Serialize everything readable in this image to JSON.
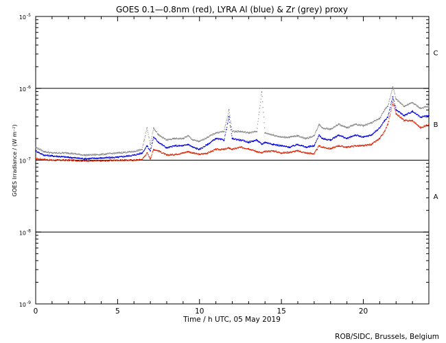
{
  "chart_data": {
    "type": "scatter",
    "title": "GOES 0.1—0.8nm (red), LYRA Al (blue) & Zr (grey) proxy",
    "xlabel": "Time / h UTC, 05 May 2019",
    "ylabel": "GOES Irradiance / (W m⁻²)",
    "credit": "ROB/SIDC, Brussels, Belgium",
    "xlim": [
      0,
      24
    ],
    "ylim_log10": [
      -9,
      -5
    ],
    "y_scale": "log",
    "x_ticks": [
      {
        "value": 0,
        "label": "0"
      },
      {
        "value": 5,
        "label": "5"
      },
      {
        "value": 10,
        "label": "10"
      },
      {
        "value": 15,
        "label": "15"
      },
      {
        "value": 20,
        "label": "20"
      }
    ],
    "y_ticks": [
      {
        "exp": -5,
        "label": "10",
        "sup": "-5"
      },
      {
        "exp": -6,
        "label": "10",
        "sup": "-6"
      },
      {
        "exp": -7,
        "label": "10",
        "sup": "-7"
      },
      {
        "exp": -8,
        "label": "10",
        "sup": "-8"
      },
      {
        "exp": -9,
        "label": "10",
        "sup": "-9"
      }
    ],
    "flare_class_lines": [
      -6,
      -7,
      -8
    ],
    "flare_classes": [
      {
        "label": "C",
        "exp": -5.5
      },
      {
        "label": "B",
        "exp": -6.5
      },
      {
        "label": "A",
        "exp": -7.5
      }
    ],
    "series": [
      {
        "name": "GOES 0.1—0.8nm",
        "color": "#dd2200",
        "x": [
          0,
          0.5,
          1,
          2,
          3,
          4,
          5,
          6,
          6.5,
          6.8,
          7.0,
          7.2,
          7.5,
          8,
          8.5,
          9,
          9.3,
          9.6,
          10,
          10.5,
          11,
          11.5,
          11.8,
          12,
          12.5,
          13,
          13.5,
          13.8,
          14,
          14.5,
          15,
          15.5,
          16,
          16.5,
          17,
          17.3,
          17.5,
          18,
          18.5,
          19,
          19.5,
          20,
          20.5,
          21,
          21.3,
          21.5,
          21.8,
          22,
          22.5,
          23,
          23.5,
          24
        ],
        "log_y": [
          -6.98,
          -6.99,
          -7.0,
          -7.0,
          -7.01,
          -7.01,
          -7.0,
          -7.0,
          -6.99,
          -6.9,
          -6.98,
          -6.85,
          -6.87,
          -6.93,
          -6.92,
          -6.9,
          -6.88,
          -6.9,
          -6.92,
          -6.9,
          -6.85,
          -6.85,
          -6.83,
          -6.85,
          -6.82,
          -6.84,
          -6.88,
          -6.9,
          -6.88,
          -6.87,
          -6.9,
          -6.89,
          -6.87,
          -6.9,
          -6.91,
          -6.8,
          -6.82,
          -6.84,
          -6.8,
          -6.82,
          -6.8,
          -6.8,
          -6.78,
          -6.7,
          -6.6,
          -6.5,
          -6.2,
          -6.35,
          -6.45,
          -6.45,
          -6.55,
          -6.5
        ]
      },
      {
        "name": "LYRA Al proxy",
        "color": "#0000dd",
        "x": [
          0,
          0.5,
          1,
          2,
          3,
          4,
          5,
          6,
          6.5,
          6.8,
          7.0,
          7.2,
          7.5,
          8,
          8.5,
          9,
          9.3,
          9.6,
          10,
          10.5,
          11,
          11.5,
          11.8,
          12,
          12.5,
          13,
          13.5,
          13.8,
          14,
          14.5,
          15,
          15.5,
          16,
          16.5,
          17,
          17.3,
          17.5,
          18,
          18.5,
          19,
          19.5,
          20,
          20.5,
          21,
          21.3,
          21.5,
          21.8,
          22,
          22.5,
          23,
          23.5,
          24
        ],
        "log_y": [
          -6.87,
          -6.93,
          -6.94,
          -6.96,
          -6.98,
          -6.97,
          -6.96,
          -6.93,
          -6.9,
          -6.8,
          -6.87,
          -6.68,
          -6.75,
          -6.83,
          -6.8,
          -6.8,
          -6.78,
          -6.82,
          -6.85,
          -6.78,
          -6.7,
          -6.72,
          -6.4,
          -6.7,
          -6.72,
          -6.75,
          -6.72,
          -6.78,
          -6.75,
          -6.78,
          -6.8,
          -6.82,
          -6.78,
          -6.82,
          -6.8,
          -6.65,
          -6.7,
          -6.72,
          -6.65,
          -6.7,
          -6.65,
          -6.68,
          -6.65,
          -6.55,
          -6.45,
          -6.4,
          -6.12,
          -6.3,
          -6.38,
          -6.32,
          -6.4,
          -6.38
        ]
      },
      {
        "name": "LYRA Zr proxy",
        "color": "#888888",
        "x": [
          0,
          0.5,
          1,
          2,
          3,
          4,
          5,
          6,
          6.5,
          6.8,
          7.0,
          7.2,
          7.5,
          8,
          8.5,
          9,
          9.3,
          9.6,
          10,
          10.5,
          11,
          11.5,
          11.8,
          12,
          12.5,
          13,
          13.5,
          13.8,
          14,
          14.5,
          15,
          15.5,
          16,
          16.5,
          17,
          17.3,
          17.5,
          18,
          18.5,
          19,
          19.5,
          20,
          20.5,
          21,
          21.3,
          21.5,
          21.8,
          22,
          22.5,
          23,
          23.5,
          24
        ],
        "log_y": [
          -6.82,
          -6.88,
          -6.9,
          -6.9,
          -6.93,
          -6.92,
          -6.9,
          -6.88,
          -6.85,
          -6.55,
          -6.78,
          -6.55,
          -6.65,
          -6.72,
          -6.7,
          -6.7,
          -6.66,
          -6.72,
          -6.74,
          -6.68,
          -6.62,
          -6.6,
          -6.3,
          -6.6,
          -6.6,
          -6.62,
          -6.6,
          -6.05,
          -6.62,
          -6.65,
          -6.68,
          -6.68,
          -6.66,
          -6.7,
          -6.66,
          -6.5,
          -6.55,
          -6.57,
          -6.5,
          -6.55,
          -6.5,
          -6.52,
          -6.48,
          -6.42,
          -6.3,
          -6.25,
          -5.98,
          -6.15,
          -6.25,
          -6.2,
          -6.28,
          -6.25
        ]
      }
    ],
    "grid": false,
    "legend": "none"
  }
}
